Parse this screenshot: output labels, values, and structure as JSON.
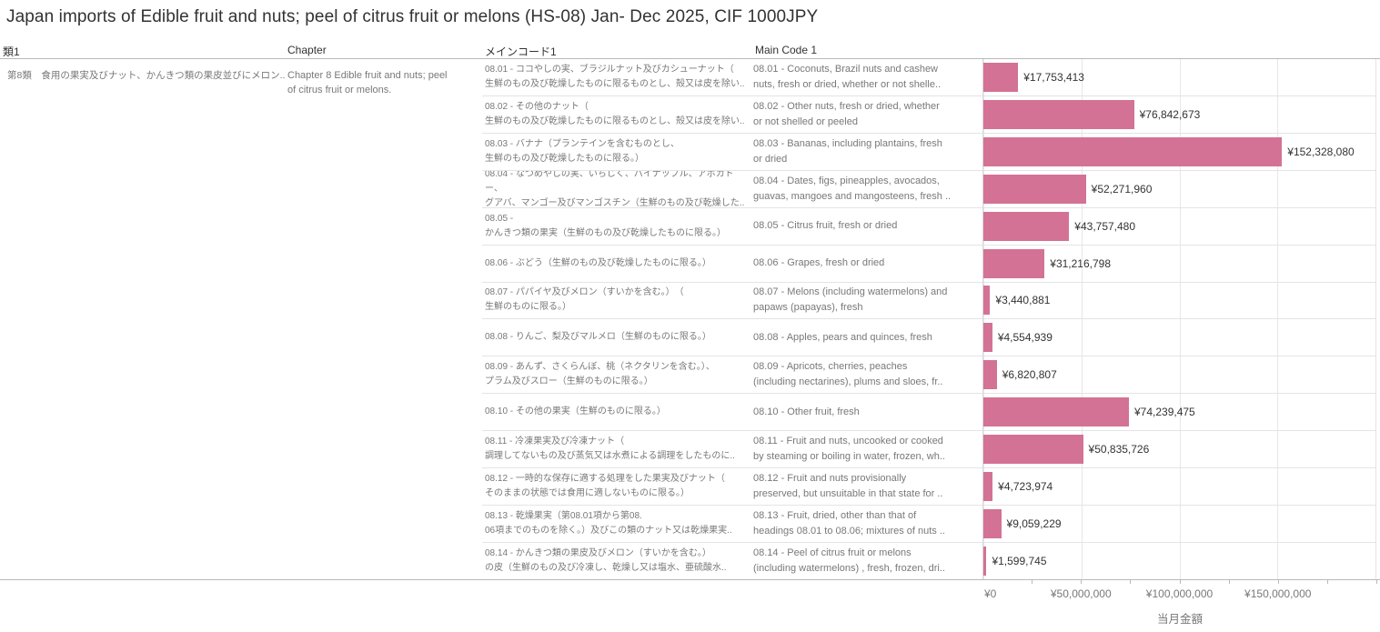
{
  "title": "Japan imports of Edible fruit and nuts; peel of citrus fruit or melons (HS-08) Jan- Dec 2025, CIF 1000JPY",
  "columns": {
    "col1_header": "類1",
    "col2_header": "Chapter",
    "col3_header": "メインコード1",
    "col4_header": "Main Code 1"
  },
  "row_group": {
    "rui1": "第8類　食用の果実及びナット、かんきつ類の果皮並びにメロン..",
    "chapter": "Chapter 8   Edible fruit and nuts; peel\nof citrus fruit or melons."
  },
  "colors": {
    "bar": "#d37295",
    "text_gray": "#787878",
    "text_dark": "#333333"
  },
  "chart_data": {
    "type": "bar",
    "orientation": "horizontal",
    "title": "Japan imports of Edible fruit and nuts; peel of citrus fruit or melons (HS-08) Jan- Dec 2025, CIF 1000JPY",
    "xlabel": "当月金額",
    "ylabel": "",
    "xlim": [
      0,
      200000000
    ],
    "x_ticks": [
      "¥0",
      "¥50,000,000",
      "¥100,000,000",
      "¥150,000,000"
    ],
    "grid": true,
    "bar_color": "#d37295",
    "rows": [
      {
        "jp": "08.01 - ココやしの実、ブラジルナット及びカシューナット（\n生鮮のもの及び乾燥したものに限るものとし、殻又は皮を除い..",
        "en": "08.01 - Coconuts, Brazil nuts and cashew\nnuts, fresh or dried, whether or not shelle..",
        "value": 17753413,
        "label": "¥17,753,413"
      },
      {
        "jp": "08.02 - その他のナット（\n生鮮のもの及び乾燥したものに限るものとし、殻又は皮を除い..",
        "en": "08.02 - Other nuts, fresh or dried, whether\nor not shelled or peeled",
        "value": 76842673,
        "label": "¥76,842,673"
      },
      {
        "jp": "08.03 - バナナ（プランテインを含むものとし、\n生鮮のもの及び乾燥したものに限る。）",
        "en": "08.03 - Bananas, including plantains, fresh\nor dried",
        "value": 152328080,
        "label": "¥152,328,080"
      },
      {
        "jp": "08.04 - なつめやしの実、いちじく、パイナップル、アボカドー、\nグアバ、マンゴー及びマンゴスチン（生鮮のもの及び乾燥した..",
        "en": "08.04 - Dates, figs, pineapples, avocados,\nguavas, mangoes and mangosteens, fresh ..",
        "value": 52271960,
        "label": "¥52,271,960"
      },
      {
        "jp": "08.05 -\nかんきつ類の果実（生鮮のもの及び乾燥したものに限る。）",
        "en": "08.05 - Citrus fruit, fresh or dried",
        "value": 43757480,
        "label": "¥43,757,480"
      },
      {
        "jp": "08.06 - ぶどう（生鮮のもの及び乾燥したものに限る。）",
        "en": "08.06 - Grapes, fresh or dried",
        "value": 31216798,
        "label": "¥31,216,798"
      },
      {
        "jp": "08.07 - パパイヤ及びメロン（すいかを含む。）　（\n生鮮のものに限る。）",
        "en": "08.07 - Melons (including watermelons) and\npapaws (papayas), fresh",
        "value": 3440881,
        "label": "¥3,440,881"
      },
      {
        "jp": "08.08 - りんご、梨及びマルメロ（生鮮のものに限る。）",
        "en": "08.08 - Apples, pears and quinces, fresh",
        "value": 4554939,
        "label": "¥4,554,939"
      },
      {
        "jp": "08.09 - あんず、さくらんぼ、桃（ネクタリンを含む。）、\nプラム及びスロー（生鮮のものに限る。）",
        "en": "08.09 - Apricots, cherries, peaches\n(including nectarines), plums and sloes, fr..",
        "value": 6820807,
        "label": "¥6,820,807"
      },
      {
        "jp": "08.10 - その他の果実（生鮮のものに限る。）",
        "en": "08.10 - Other fruit, fresh",
        "value": 74239475,
        "label": "¥74,239,475"
      },
      {
        "jp": "08.11 - 冷凍果実及び冷凍ナット（\n調理してないもの及び蒸気又は水煮による調理をしたものに..",
        "en": "08.11 - Fruit and nuts, uncooked or cooked\nby steaming or boiling in water, frozen, wh..",
        "value": 50835726,
        "label": "¥50,835,726"
      },
      {
        "jp": "08.12 - 一時的な保存に適する処理をした果実及びナット（\nそのままの状態では食用に適しないものに限る。）",
        "en": "08.12 - Fruit and nuts provisionally\npreserved, but unsuitable in that state for ..",
        "value": 4723974,
        "label": "¥4,723,974"
      },
      {
        "jp": "08.13 - 乾燥果実（第08.01項から第08.\n06項までのものを除く。）及びこの類のナット又は乾燥果実..",
        "en": "08.13 - Fruit, dried, other than that of\nheadings 08.01 to 08.06; mixtures of nuts ..",
        "value": 9059229,
        "label": "¥9,059,229"
      },
      {
        "jp": "08.14 - かんきつ類の果皮及びメロン（すいかを含む。）\nの皮（生鮮のもの及び冷凍し、乾燥し又は塩水、亜硫酸水..",
        "en": "08.14 - Peel of citrus fruit or melons\n(including watermelons) , fresh, frozen, dri..",
        "value": 1599745,
        "label": "¥1,599,745"
      }
    ]
  }
}
